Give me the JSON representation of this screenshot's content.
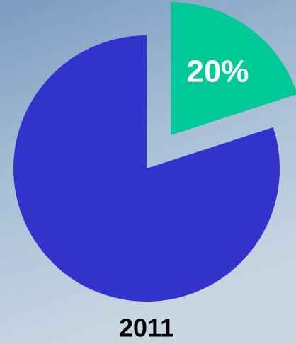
{
  "chart_data": {
    "type": "pie",
    "title": "2011",
    "values": [
      20,
      80
    ],
    "value_labels": [
      "20%",
      null
    ],
    "colors": [
      "#00c896",
      "#3333cc"
    ],
    "explode": [
      true,
      false
    ]
  }
}
